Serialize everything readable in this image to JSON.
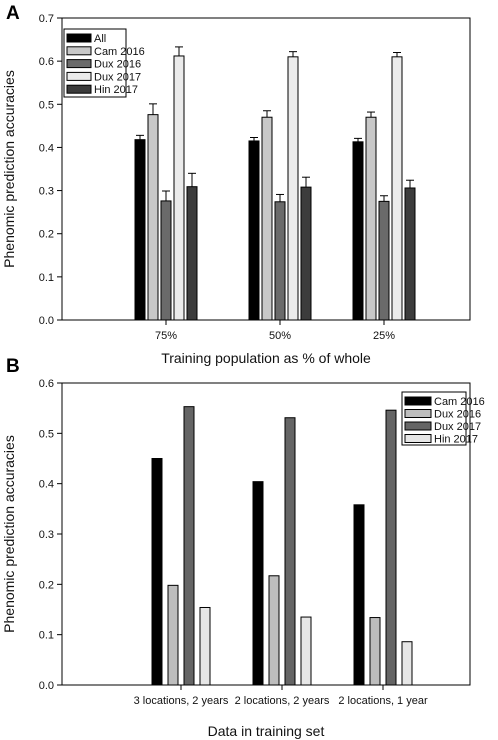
{
  "chart_data": [
    {
      "type": "bar",
      "panel_label": "A",
      "xlabel": "Training population as % of whole",
      "ylabel": "Phenomic prediction accuracies",
      "categories": [
        "75%",
        "50%",
        "25%"
      ],
      "ylim": [
        0,
        0.7
      ],
      "yticks": [
        "0.0",
        "0.1",
        "0.2",
        "0.3",
        "0.4",
        "0.5",
        "0.6",
        "0.7"
      ],
      "error_bars": true,
      "legend_position": "top-left",
      "series": [
        {
          "name": "All",
          "color": "#000000",
          "values": [
            0.418,
            0.415,
            0.413
          ],
          "errors": [
            0.01,
            0.008,
            0.008
          ]
        },
        {
          "name": "Cam 2016",
          "color": "#c8c8c8",
          "values": [
            0.476,
            0.47,
            0.47
          ],
          "errors": [
            0.025,
            0.015,
            0.012
          ]
        },
        {
          "name": "Dux 2016",
          "color": "#6a6a6a",
          "values": [
            0.276,
            0.274,
            0.275
          ],
          "errors": [
            0.023,
            0.017,
            0.013
          ]
        },
        {
          "name": "Dux 2017",
          "color": "#ebebeb",
          "values": [
            0.612,
            0.61,
            0.61
          ],
          "errors": [
            0.021,
            0.012,
            0.01
          ]
        },
        {
          "name": "Hin 2017",
          "color": "#3c3c3c",
          "values": [
            0.309,
            0.308,
            0.306
          ],
          "errors": [
            0.031,
            0.023,
            0.018
          ]
        }
      ]
    },
    {
      "type": "bar",
      "panel_label": "B",
      "xlabel": "Data in training set",
      "ylabel": "Phenomic prediction accuracies",
      "categories": [
        "3 locations, 2 years",
        "2 locations, 2 years",
        "2 locations, 1 year"
      ],
      "ylim": [
        0,
        0.6
      ],
      "yticks": [
        "0.0",
        "0.1",
        "0.2",
        "0.3",
        "0.4",
        "0.5",
        "0.6"
      ],
      "error_bars": false,
      "legend_position": "top-right",
      "series": [
        {
          "name": "Cam 2016",
          "color": "#000000",
          "values": [
            0.45,
            0.404,
            0.358
          ]
        },
        {
          "name": "Dux 2016",
          "color": "#bdbdbd",
          "values": [
            0.198,
            0.217,
            0.134
          ]
        },
        {
          "name": "Dux 2017",
          "color": "#656565",
          "values": [
            0.553,
            0.531,
            0.546
          ]
        },
        {
          "name": "Hin 2017",
          "color": "#e6e6e6",
          "values": [
            0.154,
            0.135,
            0.086
          ]
        }
      ]
    }
  ]
}
